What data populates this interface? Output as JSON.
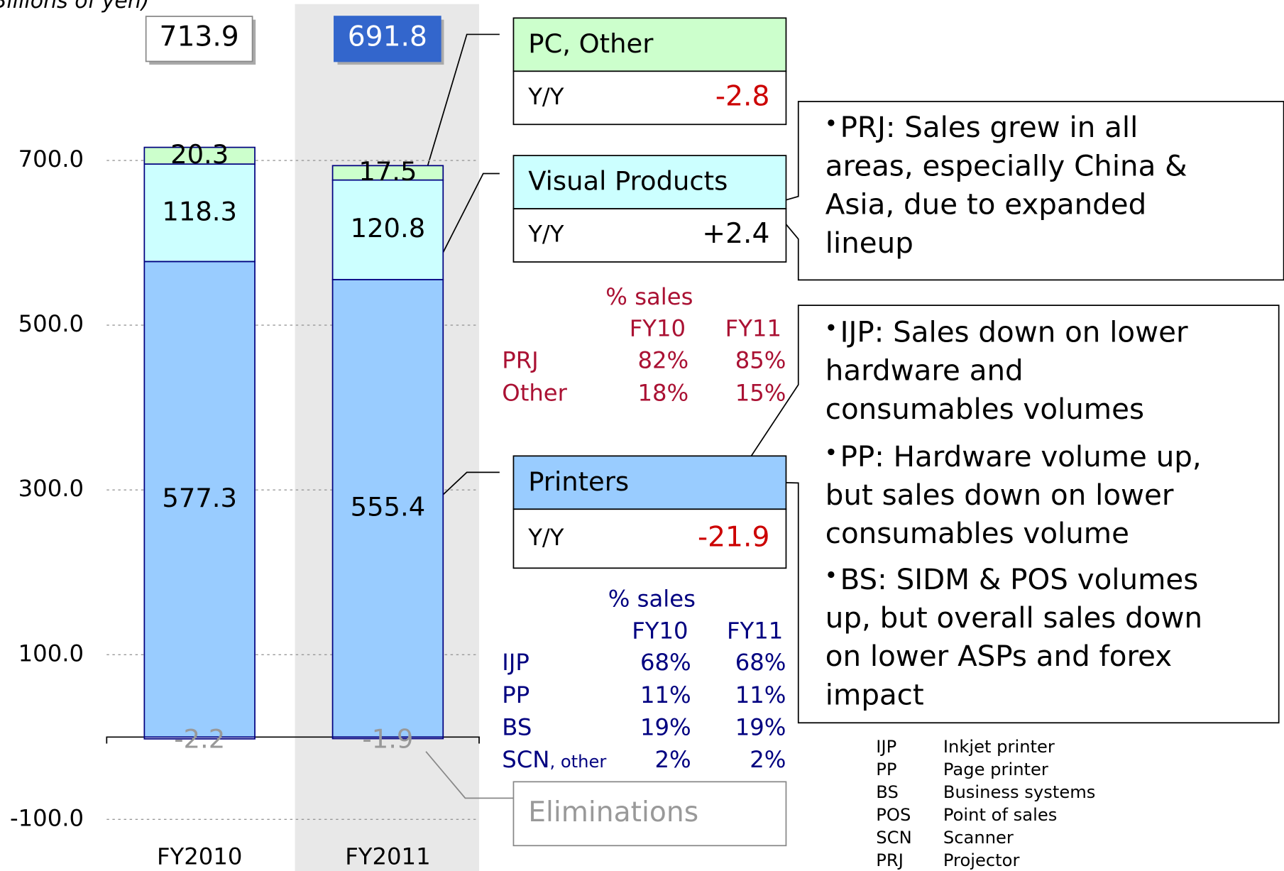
{
  "chart_data": {
    "type": "bar",
    "y_label": "Billions of yen)",
    "categories": [
      "FY2010",
      "FY2011"
    ],
    "totals": [
      713.9,
      691.8
    ],
    "series": [
      {
        "name": "Printers",
        "color": "#99ccff",
        "values": [
          577.3,
          555.4
        ],
        "yoy": -21.9
      },
      {
        "name": "Visual Products",
        "color": "#ccffff",
        "values": [
          118.3,
          120.8
        ],
        "yoy": {
          "value": 2.4,
          "label": "+2.4"
        }
      },
      {
        "name": "PC, Other",
        "color": "#ccffcc",
        "values": [
          20.3,
          17.5
        ],
        "yoy": -2.8
      },
      {
        "name": "Eliminations",
        "color": "#ffffff",
        "values": [
          -2.2,
          -1.9
        ]
      }
    ],
    "yoy_label": "Y/Y",
    "ylim": [
      -100,
      700
    ],
    "yticks": [
      {
        "value": 700,
        "label": "700.0"
      },
      {
        "value": 500,
        "label": "500.0"
      },
      {
        "value": 300,
        "label": "300.0"
      },
      {
        "value": 100,
        "label": "100.0"
      },
      {
        "value": -100,
        "label": "-100.0"
      }
    ],
    "grid": true,
    "visual_table": {
      "title": "% sales",
      "columns": [
        "FY10",
        "FY11"
      ],
      "rows": [
        [
          "PRJ",
          "82%",
          "85%"
        ],
        [
          "Other",
          "18%",
          "15%"
        ]
      ]
    },
    "printer_table": {
      "title": "% sales",
      "columns": [
        "FY10",
        "FY11"
      ],
      "rows": [
        [
          "IJP",
          "68%",
          "68%"
        ],
        [
          "PP",
          "11%",
          "11%"
        ],
        [
          "BS",
          "19%",
          "19%"
        ],
        [
          "SCN",
          "2%",
          "2%"
        ]
      ],
      "row_note": ", other"
    },
    "callouts": [
      [
        "PRJ: Sales grew in all",
        "areas, especially China &",
        "Asia, due to expanded",
        "lineup"
      ],
      [
        "IJP: Sales down on lower",
        "hardware and",
        "consumables volumes",
        "PP: Hardware volume up,",
        "but sales down on lower",
        "consumables volume",
        "BS: SIDM & POS volumes",
        "up, but overall sales down",
        "on lower ASPs and forex",
        "impact"
      ]
    ],
    "glossary": [
      [
        "IJP",
        "Inkjet printer"
      ],
      [
        "PP",
        "Page printer"
      ],
      [
        "BS",
        "Business systems"
      ],
      [
        "POS",
        "Point of sales"
      ],
      [
        "SCN",
        "Scanner"
      ],
      [
        "PRJ",
        "Projector"
      ]
    ]
  }
}
